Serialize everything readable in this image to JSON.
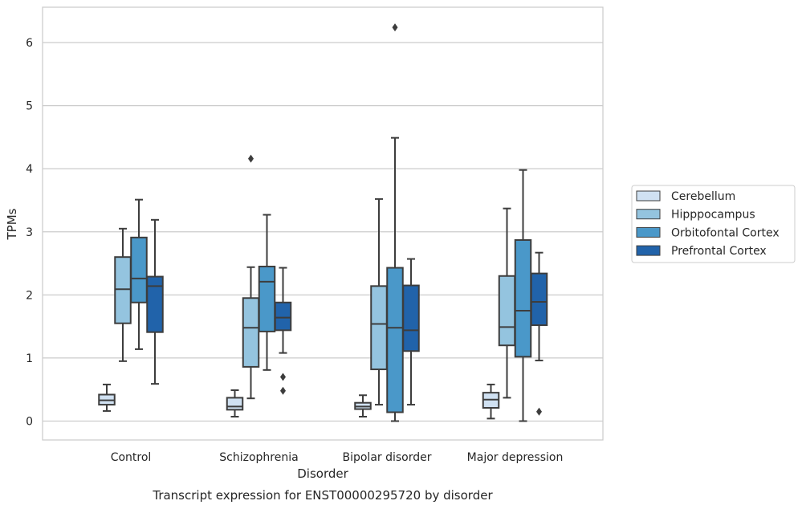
{
  "chart_data": {
    "type": "box",
    "caption": "Transcript expression for ENST00000295720 by disorder",
    "xlabel": "Disorder",
    "ylabel": "TPMs",
    "ylim": [
      -0.3,
      6.55
    ],
    "yticks": [
      0,
      1,
      2,
      3,
      4,
      5,
      6
    ],
    "grid": "horizontal",
    "legend_position": "right",
    "categories": [
      "Control",
      "Schizophrenia",
      "Bipolar disorder",
      "Major depression"
    ],
    "series": [
      {
        "name": "Cerebellum",
        "color": "#d0e1f2",
        "boxes": [
          {
            "whislo": 0.16,
            "q1": 0.26,
            "med": 0.33,
            "q3": 0.42,
            "whishi": 0.58,
            "fliers": []
          },
          {
            "whislo": 0.07,
            "q1": 0.18,
            "med": 0.23,
            "q3": 0.37,
            "whishi": 0.49,
            "fliers": []
          },
          {
            "whislo": 0.07,
            "q1": 0.19,
            "med": 0.23,
            "q3": 0.29,
            "whishi": 0.41,
            "fliers": []
          },
          {
            "whislo": 0.04,
            "q1": 0.21,
            "med": 0.34,
            "q3": 0.45,
            "whishi": 0.58,
            "fliers": []
          }
        ]
      },
      {
        "name": "Hipppocampus",
        "color": "#94c4df",
        "boxes": [
          {
            "whislo": 0.95,
            "q1": 1.55,
            "med": 2.09,
            "q3": 2.6,
            "whishi": 3.05,
            "fliers": []
          },
          {
            "whislo": 0.36,
            "q1": 0.86,
            "med": 1.48,
            "q3": 1.95,
            "whishi": 2.44,
            "fliers": [
              4.16
            ]
          },
          {
            "whislo": 0.26,
            "q1": 0.82,
            "med": 1.54,
            "q3": 2.14,
            "whishi": 3.52,
            "fliers": []
          },
          {
            "whislo": 0.37,
            "q1": 1.2,
            "med": 1.49,
            "q3": 2.3,
            "whishi": 3.37,
            "fliers": []
          }
        ]
      },
      {
        "name": "Orbitofontal Cortex",
        "color": "#4a98c9",
        "boxes": [
          {
            "whislo": 1.14,
            "q1": 1.88,
            "med": 2.26,
            "q3": 2.91,
            "whishi": 3.51,
            "fliers": []
          },
          {
            "whislo": 0.81,
            "q1": 1.42,
            "med": 2.21,
            "q3": 2.45,
            "whishi": 3.27,
            "fliers": []
          },
          {
            "whislo": 0.0,
            "q1": 0.14,
            "med": 1.48,
            "q3": 2.43,
            "whishi": 4.49,
            "fliers": [
              6.24
            ]
          },
          {
            "whislo": 0.0,
            "q1": 1.02,
            "med": 1.75,
            "q3": 2.87,
            "whishi": 3.98,
            "fliers": []
          }
        ]
      },
      {
        "name": "Prefrontal Cortex",
        "color": "#2163aa",
        "boxes": [
          {
            "whislo": 0.59,
            "q1": 1.41,
            "med": 2.14,
            "q3": 2.29,
            "whishi": 3.19,
            "fliers": []
          },
          {
            "whislo": 1.08,
            "q1": 1.44,
            "med": 1.64,
            "q3": 1.88,
            "whishi": 2.43,
            "fliers": [
              0.7,
              0.48
            ]
          },
          {
            "whislo": 0.26,
            "q1": 1.11,
            "med": 1.44,
            "q3": 2.15,
            "whishi": 2.57,
            "fliers": []
          },
          {
            "whislo": 0.96,
            "q1": 1.52,
            "med": 1.89,
            "q3": 2.34,
            "whishi": 2.67,
            "fliers": [
              0.15
            ]
          }
        ]
      }
    ]
  }
}
